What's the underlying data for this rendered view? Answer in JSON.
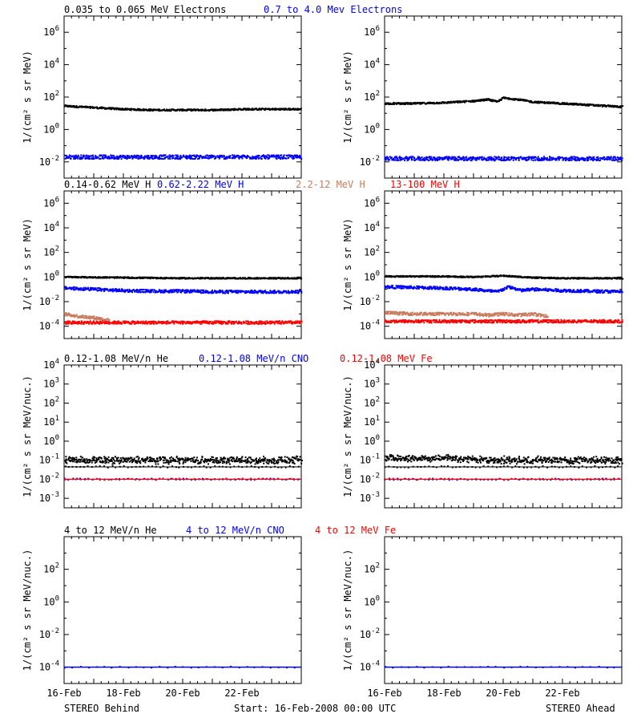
{
  "colors": {
    "black": "#000000",
    "blue": "#0000ff",
    "tan": "#c97b5e",
    "red": "#ff0000"
  },
  "footer": {
    "left": "STEREO Behind",
    "center": "Start: 16-Feb-2008 00:00 UTC",
    "right": "STEREO Ahead"
  },
  "x_ticks": [
    "16-Feb",
    "18-Feb",
    "20-Feb",
    "22-Feb"
  ],
  "chart_data": [
    {
      "type": "scatter",
      "panel": "electrons",
      "legend": [
        {
          "text": "0.035 to 0.065 MeV Electrons",
          "color": "black"
        },
        {
          "text": "0.7 to 4.0 Mev Electrons",
          "color": "blue"
        }
      ],
      "ylabel": "1/(cm² s sr MeV)",
      "yscale": "log",
      "ylim_exp": [
        -3,
        7
      ],
      "ytick_exps": [
        -2,
        0,
        2,
        4,
        6
      ],
      "xlim_days": [
        0,
        8
      ],
      "behind": [
        {
          "color": "black",
          "x": [
            0,
            1,
            2,
            3,
            4,
            5,
            6,
            7,
            8
          ],
          "log10_y": [
            1.45,
            1.35,
            1.25,
            1.2,
            1.2,
            1.2,
            1.25,
            1.25,
            1.25
          ]
        },
        {
          "color": "blue",
          "x": [
            0,
            2,
            4,
            6,
            8
          ],
          "log10_y": [
            -1.7,
            -1.7,
            -1.7,
            -1.7,
            -1.7
          ]
        }
      ],
      "ahead": [
        {
          "color": "black",
          "x": [
            0,
            1,
            2,
            3,
            3.5,
            3.8,
            4,
            4.5,
            5,
            6,
            7,
            8
          ],
          "log10_y": [
            1.6,
            1.6,
            1.65,
            1.75,
            1.85,
            1.7,
            1.95,
            1.85,
            1.7,
            1.6,
            1.5,
            1.4
          ]
        },
        {
          "color": "blue",
          "x": [
            0,
            2,
            4,
            6,
            8
          ],
          "log10_y": [
            -1.8,
            -1.8,
            -1.8,
            -1.8,
            -1.8
          ]
        }
      ]
    },
    {
      "type": "scatter",
      "panel": "protons",
      "legend": [
        {
          "text": "0.14-0.62 MeV H",
          "color": "black"
        },
        {
          "text": "0.62-2.22 MeV H",
          "color": "blue"
        },
        {
          "text": "2.2-12 MeV H",
          "color": "tan"
        },
        {
          "text": "13-100 MeV H",
          "color": "red"
        }
      ],
      "ylabel": "1/(cm² s sr MeV)",
      "yscale": "log",
      "ylim_exp": [
        -5,
        7
      ],
      "ytick_exps": [
        -4,
        -2,
        0,
        2,
        4,
        6
      ],
      "xlim_days": [
        0,
        8
      ],
      "behind": [
        {
          "color": "black",
          "x": [
            0,
            2,
            4,
            6,
            8
          ],
          "log10_y": [
            0.0,
            -0.05,
            -0.1,
            -0.1,
            -0.1
          ]
        },
        {
          "color": "blue",
          "x": [
            0,
            1,
            2,
            3,
            4,
            5,
            6,
            7,
            8
          ],
          "log10_y": [
            -0.9,
            -1.0,
            -1.1,
            -1.15,
            -1.15,
            -1.2,
            -1.2,
            -1.2,
            -1.2
          ]
        },
        {
          "color": "tan",
          "x": [
            0,
            0.5,
            1,
            1.5
          ],
          "log10_y": [
            -3.0,
            -3.2,
            -3.3,
            -3.5
          ]
        },
        {
          "color": "red",
          "x": [
            0,
            2,
            4,
            6,
            8
          ],
          "log10_y": [
            -3.7,
            -3.7,
            -3.7,
            -3.7,
            -3.7
          ]
        }
      ],
      "ahead": [
        {
          "color": "black",
          "x": [
            0,
            2,
            3,
            4,
            5,
            6,
            8
          ],
          "log10_y": [
            0.05,
            0.05,
            0.0,
            0.1,
            -0.05,
            -0.1,
            -0.1
          ]
        },
        {
          "color": "blue",
          "x": [
            0,
            1,
            2,
            3,
            3.8,
            4.2,
            4.6,
            5,
            6,
            7,
            8
          ],
          "log10_y": [
            -0.8,
            -0.85,
            -0.9,
            -1.0,
            -1.2,
            -0.8,
            -1.1,
            -1.0,
            -1.1,
            -1.15,
            -1.2
          ]
        },
        {
          "color": "tan",
          "x": [
            0,
            1,
            2,
            3,
            3.5,
            4,
            4.5,
            5,
            5.5
          ],
          "log10_y": [
            -2.9,
            -3.0,
            -3.0,
            -3.0,
            -3.1,
            -3.0,
            -3.1,
            -3.0,
            -3.2
          ]
        },
        {
          "color": "red",
          "x": [
            0,
            2,
            4,
            6,
            8
          ],
          "log10_y": [
            -3.6,
            -3.6,
            -3.6,
            -3.6,
            -3.6
          ]
        }
      ]
    },
    {
      "type": "scatter",
      "panel": "helium-cno-fe-low",
      "legend": [
        {
          "text": "0.12-1.08 MeV/n He",
          "color": "black"
        },
        {
          "text": "0.12-1.08 MeV/n CNO",
          "color": "blue"
        },
        {
          "text": "0.12-1.08 MeV Fe",
          "color": "red"
        }
      ],
      "ylabel": "1/(cm² s sr MeV/nuc.)",
      "yscale": "log",
      "ylim_exp": [
        -3.5,
        4
      ],
      "ytick_exps": [
        -3,
        -2,
        -1,
        0,
        1,
        2,
        3,
        4
      ],
      "xlim_days": [
        0,
        8
      ],
      "behind": [
        {
          "color": "black",
          "x": [
            0,
            8
          ],
          "log10_y": [
            -1.35,
            -1.35
          ]
        },
        {
          "color": "black",
          "x": [
            0,
            1,
            2,
            3,
            4,
            5,
            6,
            7,
            8
          ],
          "log10_y": [
            -1.0,
            -1.0,
            -1.0,
            -1.0,
            -1.0,
            -1.0,
            -1.0,
            -1.0,
            -1.0
          ]
        },
        {
          "color": "blue",
          "x": [
            0,
            8
          ],
          "log10_y": [
            -2.0,
            -2.0
          ]
        },
        {
          "color": "red",
          "x": [
            0,
            8
          ],
          "log10_y": [
            -2.0,
            -2.0
          ]
        }
      ],
      "ahead": [
        {
          "color": "black",
          "x": [
            0,
            8
          ],
          "log10_y": [
            -1.35,
            -1.35
          ]
        },
        {
          "color": "black",
          "x": [
            0,
            1,
            2,
            3,
            4,
            5,
            6,
            7,
            8
          ],
          "log10_y": [
            -0.9,
            -0.9,
            -0.9,
            -0.95,
            -1.0,
            -1.0,
            -1.0,
            -1.0,
            -1.0
          ]
        },
        {
          "color": "blue",
          "x": [
            0,
            8
          ],
          "log10_y": [
            -2.0,
            -2.0
          ]
        },
        {
          "color": "red",
          "x": [
            0,
            8
          ],
          "log10_y": [
            -2.0,
            -2.0
          ]
        }
      ]
    },
    {
      "type": "scatter",
      "panel": "helium-cno-fe-high",
      "legend": [
        {
          "text": "4 to 12 MeV/n He",
          "color": "black"
        },
        {
          "text": "4 to 12 MeV/n CNO",
          "color": "blue"
        },
        {
          "text": "4 to 12 MeV Fe",
          "color": "red"
        }
      ],
      "ylabel": "1/(cm² s sr MeV/nuc.)",
      "yscale": "log",
      "ylim_exp": [
        -5,
        4
      ],
      "ytick_exps": [
        -4,
        -2,
        0,
        2
      ],
      "xlim_days": [
        0,
        8
      ],
      "behind": [
        {
          "color": "blue",
          "x": [
            0,
            8
          ],
          "log10_y": [
            -4.0,
            -4.0
          ]
        }
      ],
      "ahead": [
        {
          "color": "blue",
          "x": [
            0,
            8
          ],
          "log10_y": [
            -4.0,
            -4.0
          ]
        }
      ]
    }
  ]
}
